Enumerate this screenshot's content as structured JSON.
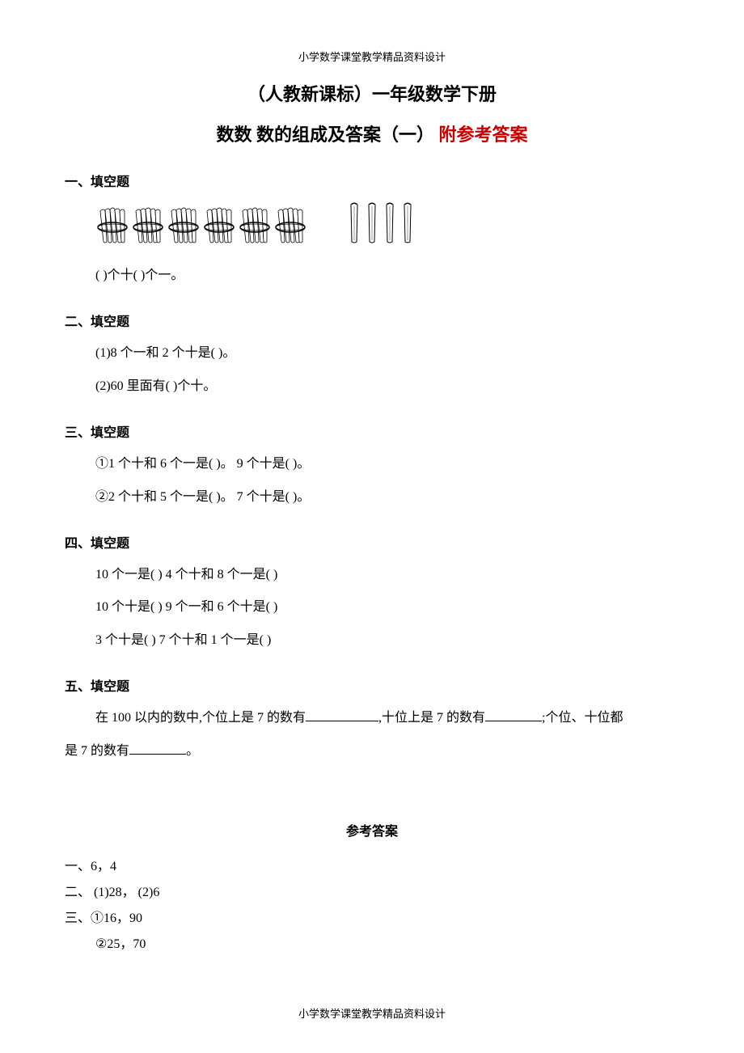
{
  "header": "小学数学课堂教学精品资料设计",
  "footer": "小学数学课堂教学精品资料设计",
  "title": "（人教新课标）一年级数学下册",
  "subtitle_black": "数数 数的组成及答案（一）",
  "subtitle_red": "附参考答案",
  "section1": {
    "heading": "一、填空题",
    "line1": "( )个十( )个一。"
  },
  "section2": {
    "heading": "二、填空题",
    "line1": "(1)8 个一和 2 个十是( )。",
    "line2": "(2)60 里面有( )个十。"
  },
  "section3": {
    "heading": "三、填空题",
    "line1": "①1 个十和 6 个一是( )。 9 个十是( )。",
    "line2": "②2 个十和 5 个一是( )。 7 个十是( )。"
  },
  "section4": {
    "heading": "四、填空题",
    "line1": "10 个一是( ) 4 个十和 8 个一是( )",
    "line2": "10 个十是( ) 9 个一和 6 个十是( )",
    "line3": "3 个十是( ) 7 个十和 1 个一是( )"
  },
  "section5": {
    "heading": "五、填空题",
    "prefix": "在 100 以内的数中,个位上是 7 的数有",
    "mid1": ",十位上是 7 的数有",
    "mid2": ";个位、十位都",
    "line2_prefix": "是 7 的数有",
    "line2_suffix": "。"
  },
  "answers": {
    "title": "参考答案",
    "a1": "一、6，4",
    "a2": "二、 (1)28， (2)6",
    "a3": "三、①16，90",
    "a3b": "②25，70"
  },
  "bundle_count": 6,
  "stick_count": 4,
  "colors": {
    "red": "#cc0000",
    "black": "#000000",
    "background": "#ffffff"
  }
}
